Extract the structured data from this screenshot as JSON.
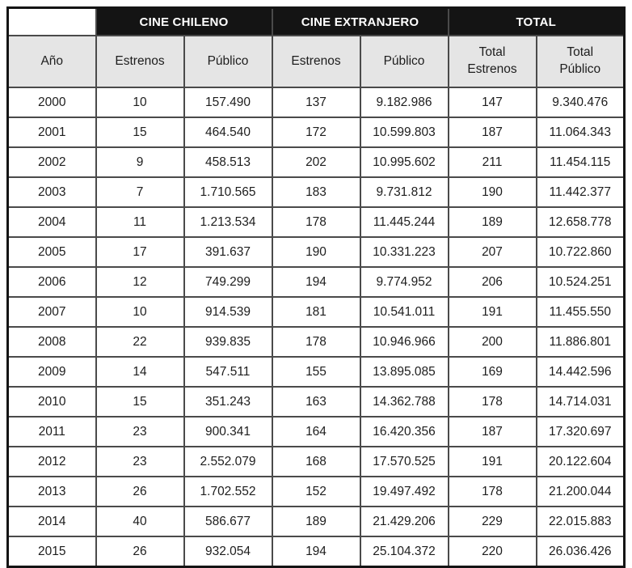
{
  "table": {
    "groups": {
      "chileno": "CINE CHILENO",
      "extranjero": "CINE EXTRANJERO",
      "total": "TOTAL"
    },
    "columns": {
      "ano": "Año",
      "estrenos_cl": "Estrenos",
      "publico_cl": "Público",
      "estrenos_ext": "Estrenos",
      "publico_ext": "Público",
      "total_estrenos": "Total Estrenos",
      "total_publico": "Total Público"
    },
    "rows": [
      {
        "ano": "2000",
        "cl_estrenos": "10",
        "cl_publico": "157.490",
        "ext_estrenos": "137",
        "ext_publico": "9.182.986",
        "total_estrenos": "147",
        "total_publico": "9.340.476"
      },
      {
        "ano": "2001",
        "cl_estrenos": "15",
        "cl_publico": "464.540",
        "ext_estrenos": "172",
        "ext_publico": "10.599.803",
        "total_estrenos": "187",
        "total_publico": "11.064.343"
      },
      {
        "ano": "2002",
        "cl_estrenos": "9",
        "cl_publico": "458.513",
        "ext_estrenos": "202",
        "ext_publico": "10.995.602",
        "total_estrenos": "211",
        "total_publico": "11.454.115"
      },
      {
        "ano": "2003",
        "cl_estrenos": "7",
        "cl_publico": "1.710.565",
        "ext_estrenos": "183",
        "ext_publico": "9.731.812",
        "total_estrenos": "190",
        "total_publico": "11.442.377"
      },
      {
        "ano": "2004",
        "cl_estrenos": "11",
        "cl_publico": "1.213.534",
        "ext_estrenos": "178",
        "ext_publico": "11.445.244",
        "total_estrenos": "189",
        "total_publico": "12.658.778"
      },
      {
        "ano": "2005",
        "cl_estrenos": "17",
        "cl_publico": "391.637",
        "ext_estrenos": "190",
        "ext_publico": "10.331.223",
        "total_estrenos": "207",
        "total_publico": "10.722.860"
      },
      {
        "ano": "2006",
        "cl_estrenos": "12",
        "cl_publico": "749.299",
        "ext_estrenos": "194",
        "ext_publico": "9.774.952",
        "total_estrenos": "206",
        "total_publico": "10.524.251"
      },
      {
        "ano": "2007",
        "cl_estrenos": "10",
        "cl_publico": "914.539",
        "ext_estrenos": "181",
        "ext_publico": "10.541.011",
        "total_estrenos": "191",
        "total_publico": "11.455.550"
      },
      {
        "ano": "2008",
        "cl_estrenos": "22",
        "cl_publico": "939.835",
        "ext_estrenos": "178",
        "ext_publico": "10.946.966",
        "total_estrenos": "200",
        "total_publico": "11.886.801"
      },
      {
        "ano": "2009",
        "cl_estrenos": "14",
        "cl_publico": "547.511",
        "ext_estrenos": "155",
        "ext_publico": "13.895.085",
        "total_estrenos": "169",
        "total_publico": "14.442.596"
      },
      {
        "ano": "2010",
        "cl_estrenos": "15",
        "cl_publico": "351.243",
        "ext_estrenos": "163",
        "ext_publico": "14.362.788",
        "total_estrenos": "178",
        "total_publico": "14.714.031"
      },
      {
        "ano": "2011",
        "cl_estrenos": "23",
        "cl_publico": "900.341",
        "ext_estrenos": "164",
        "ext_publico": "16.420.356",
        "total_estrenos": "187",
        "total_publico": "17.320.697"
      },
      {
        "ano": "2012",
        "cl_estrenos": "23",
        "cl_publico": "2.552.079",
        "ext_estrenos": "168",
        "ext_publico": "17.570.525",
        "total_estrenos": "191",
        "total_publico": "20.122.604"
      },
      {
        "ano": "2013",
        "cl_estrenos": "26",
        "cl_publico": "1.702.552",
        "ext_estrenos": "152",
        "ext_publico": "19.497.492",
        "total_estrenos": "178",
        "total_publico": "21.200.044"
      },
      {
        "ano": "2014",
        "cl_estrenos": "40",
        "cl_publico": "586.677",
        "ext_estrenos": "189",
        "ext_publico": "21.429.206",
        "total_estrenos": "229",
        "total_publico": "22.015.883"
      },
      {
        "ano": "2015",
        "cl_estrenos": "26",
        "cl_publico": "932.054",
        "ext_estrenos": "194",
        "ext_publico": "25.104.372",
        "total_estrenos": "220",
        "total_publico": "26.036.426"
      }
    ]
  },
  "colors": {
    "group_header_bg": "#141414",
    "group_header_text": "#ffffff",
    "subheader_bg": "#e5e5e5",
    "inner_border": "#4a4a4a",
    "outer_border": "#141414",
    "text": "#1d1d1d"
  }
}
